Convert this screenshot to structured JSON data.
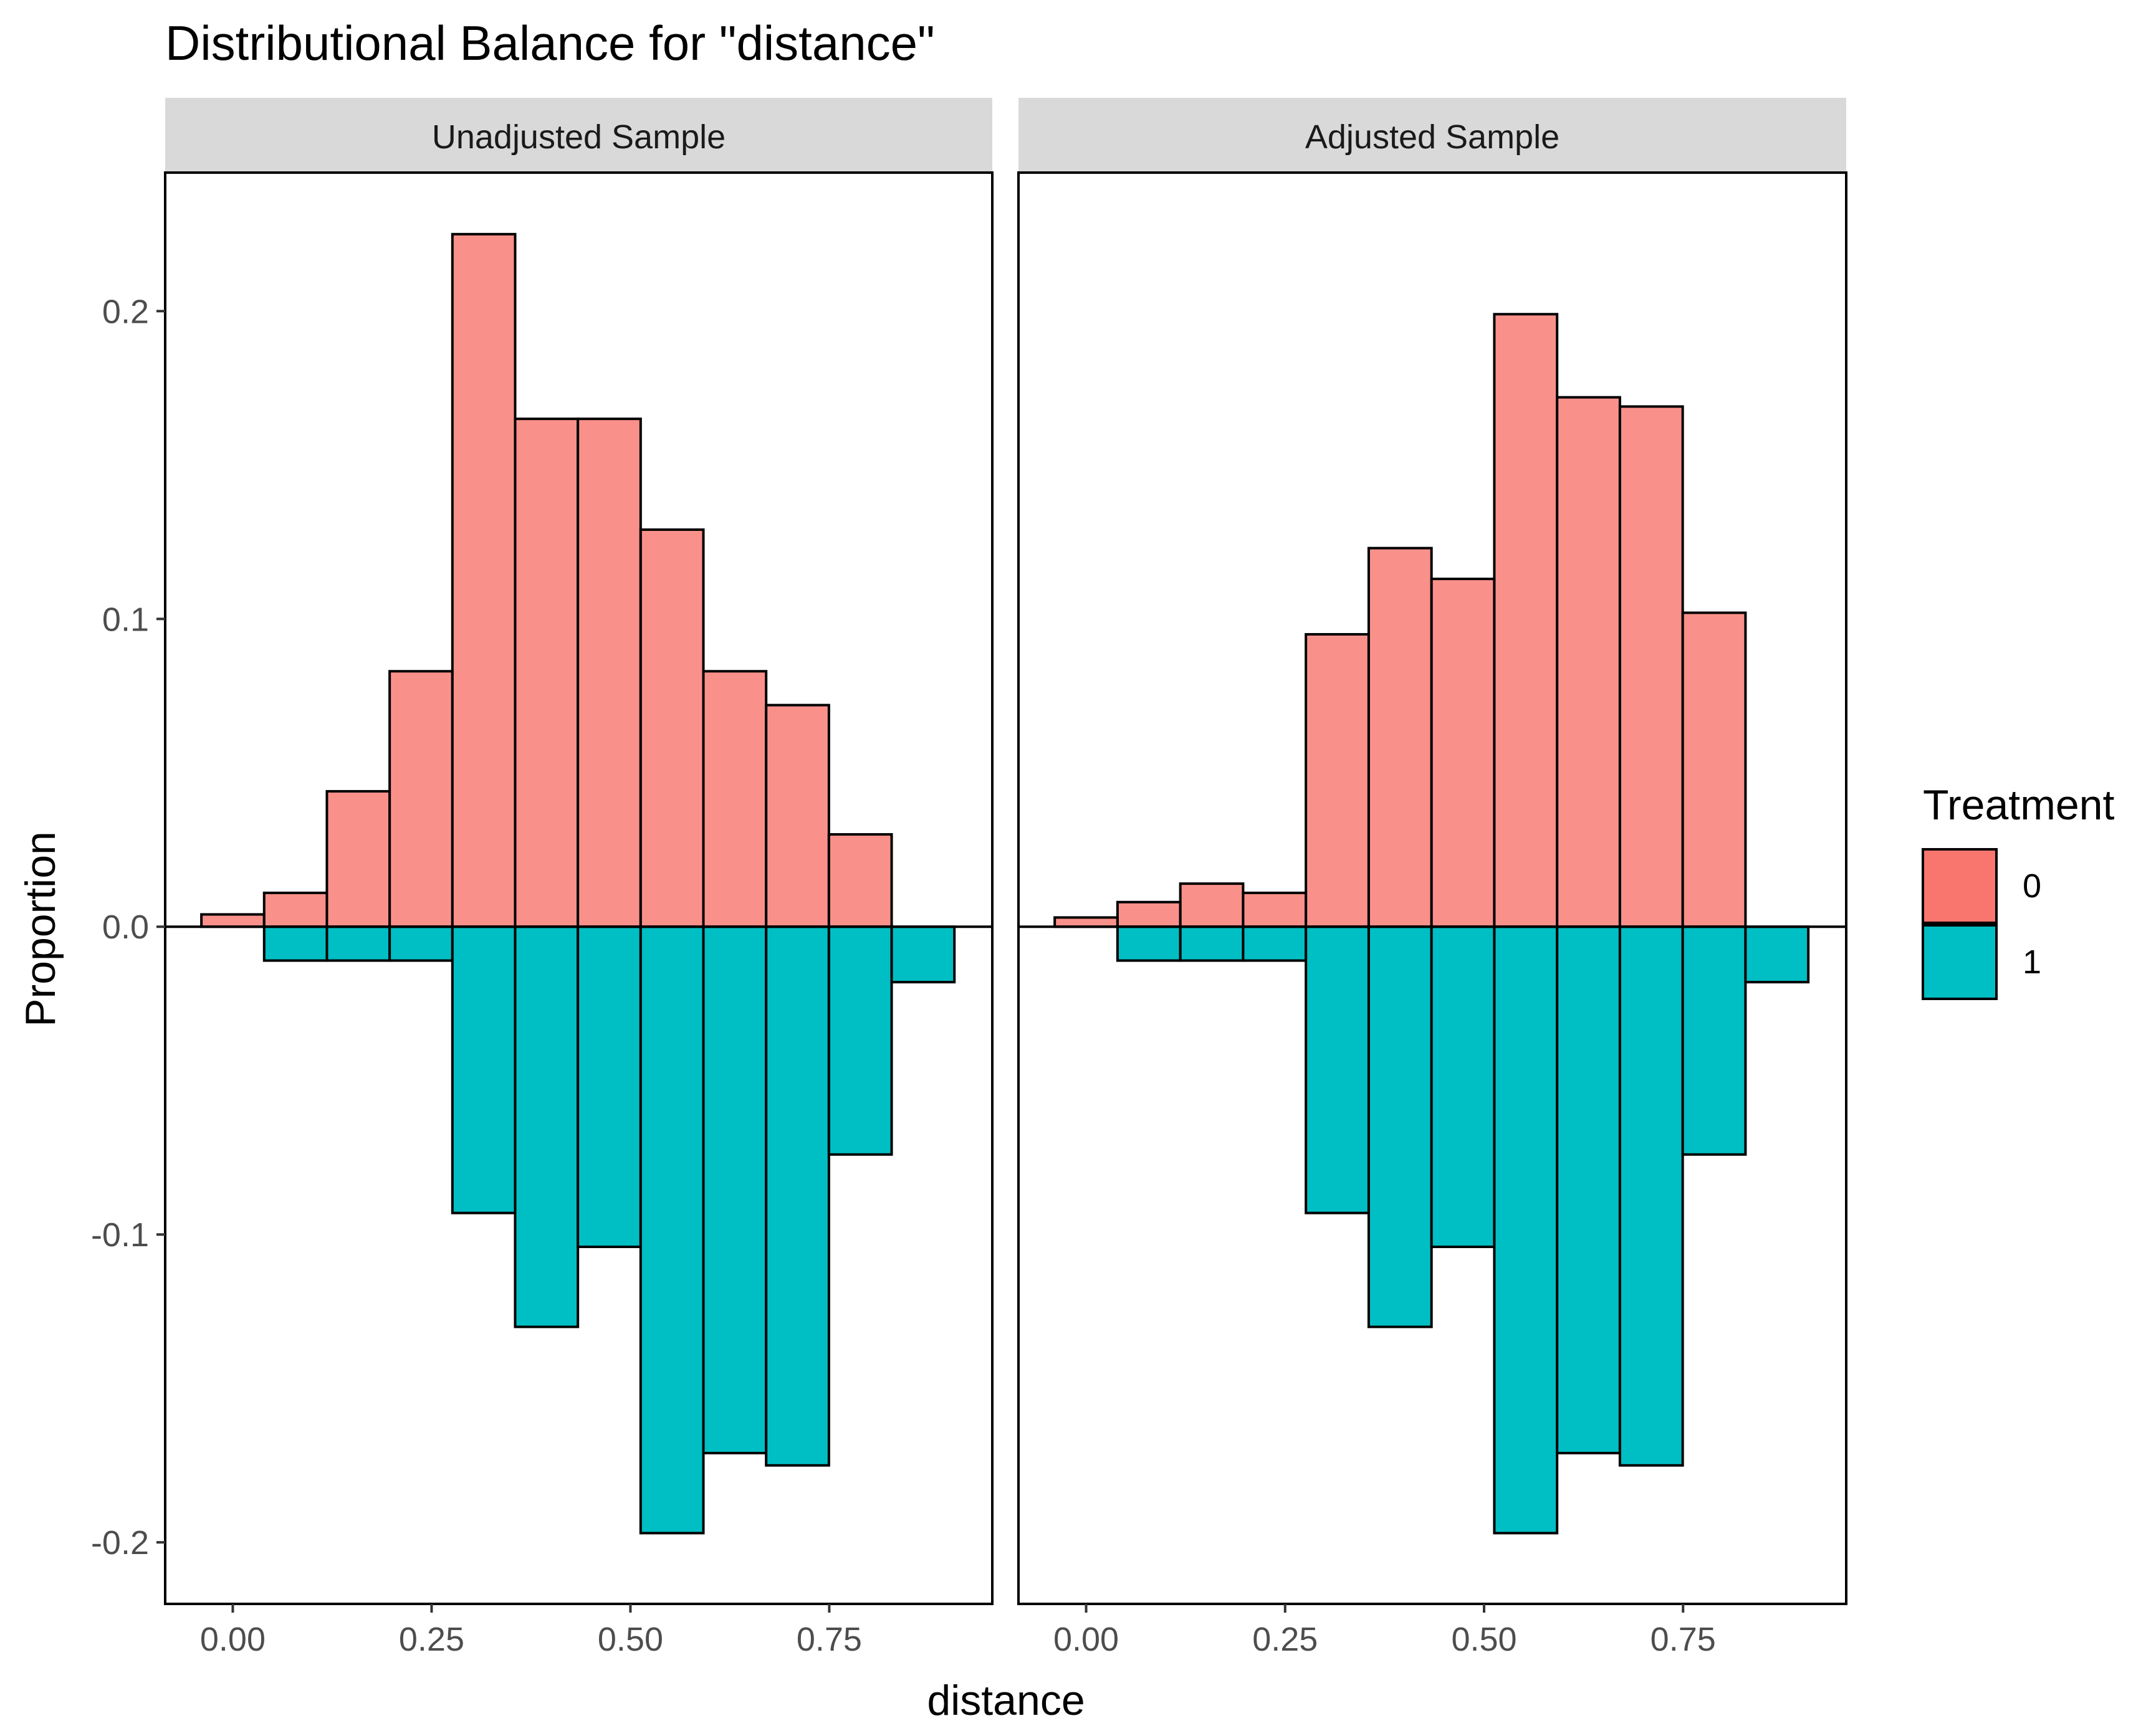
{
  "chart_data": {
    "type": "bar",
    "title": "Distributional Balance for \"distance\"",
    "xlabel": "distance",
    "ylabel": "Proportion",
    "xlim": [
      -0.085,
      0.955
    ],
    "ylim": [
      -0.22,
      0.245
    ],
    "x_ticks": [
      0.0,
      0.25,
      0.5,
      0.75
    ],
    "x_tick_labels": [
      "0.00",
      "0.25",
      "0.50",
      "0.75"
    ],
    "y_ticks": [
      0.2,
      0.1,
      0.0,
      -0.1,
      -0.2
    ],
    "y_tick_labels": [
      "0.2",
      "0.1",
      "0.0",
      "-0.1",
      "-0.2"
    ],
    "bin_width": 0.0789,
    "bin_centers": [
      0.0,
      0.0789,
      0.1578,
      0.2367,
      0.3156,
      0.3945,
      0.4734,
      0.5523,
      0.6312,
      0.7101,
      0.789,
      0.8679
    ],
    "grid": false,
    "legend": {
      "title": "Treatment",
      "position": "right",
      "entries": [
        {
          "label": "0",
          "color": "#F8766D"
        },
        {
          "label": "1",
          "color": "#00BFC4"
        }
      ]
    },
    "panels": [
      {
        "strip": "Unadjusted Sample",
        "series": [
          {
            "name": "0",
            "values": [
              0.004,
              0.011,
              0.044,
              0.083,
              0.225,
              0.165,
              0.165,
              0.129,
              0.083,
              0.072,
              0.03,
              0.0
            ]
          },
          {
            "name": "1",
            "values": [
              0.0,
              -0.011,
              -0.011,
              -0.011,
              -0.093,
              -0.13,
              -0.104,
              -0.197,
              -0.171,
              -0.175,
              -0.074,
              -0.018
            ]
          }
        ]
      },
      {
        "strip": "Adjusted Sample",
        "series": [
          {
            "name": "0",
            "values": [
              0.003,
              0.008,
              0.014,
              0.011,
              0.095,
              0.123,
              0.113,
              0.199,
              0.172,
              0.169,
              0.102,
              0.0
            ]
          },
          {
            "name": "1",
            "values": [
              0.0,
              -0.011,
              -0.011,
              -0.011,
              -0.093,
              -0.13,
              -0.104,
              -0.197,
              -0.171,
              -0.175,
              -0.074,
              -0.018
            ]
          }
        ]
      }
    ]
  },
  "colors": {
    "treatment_0": "#F8766D",
    "treatment_1": "#00BFC4",
    "strip_bg": "#D9D9D9",
    "bar_outline": "#000000"
  }
}
